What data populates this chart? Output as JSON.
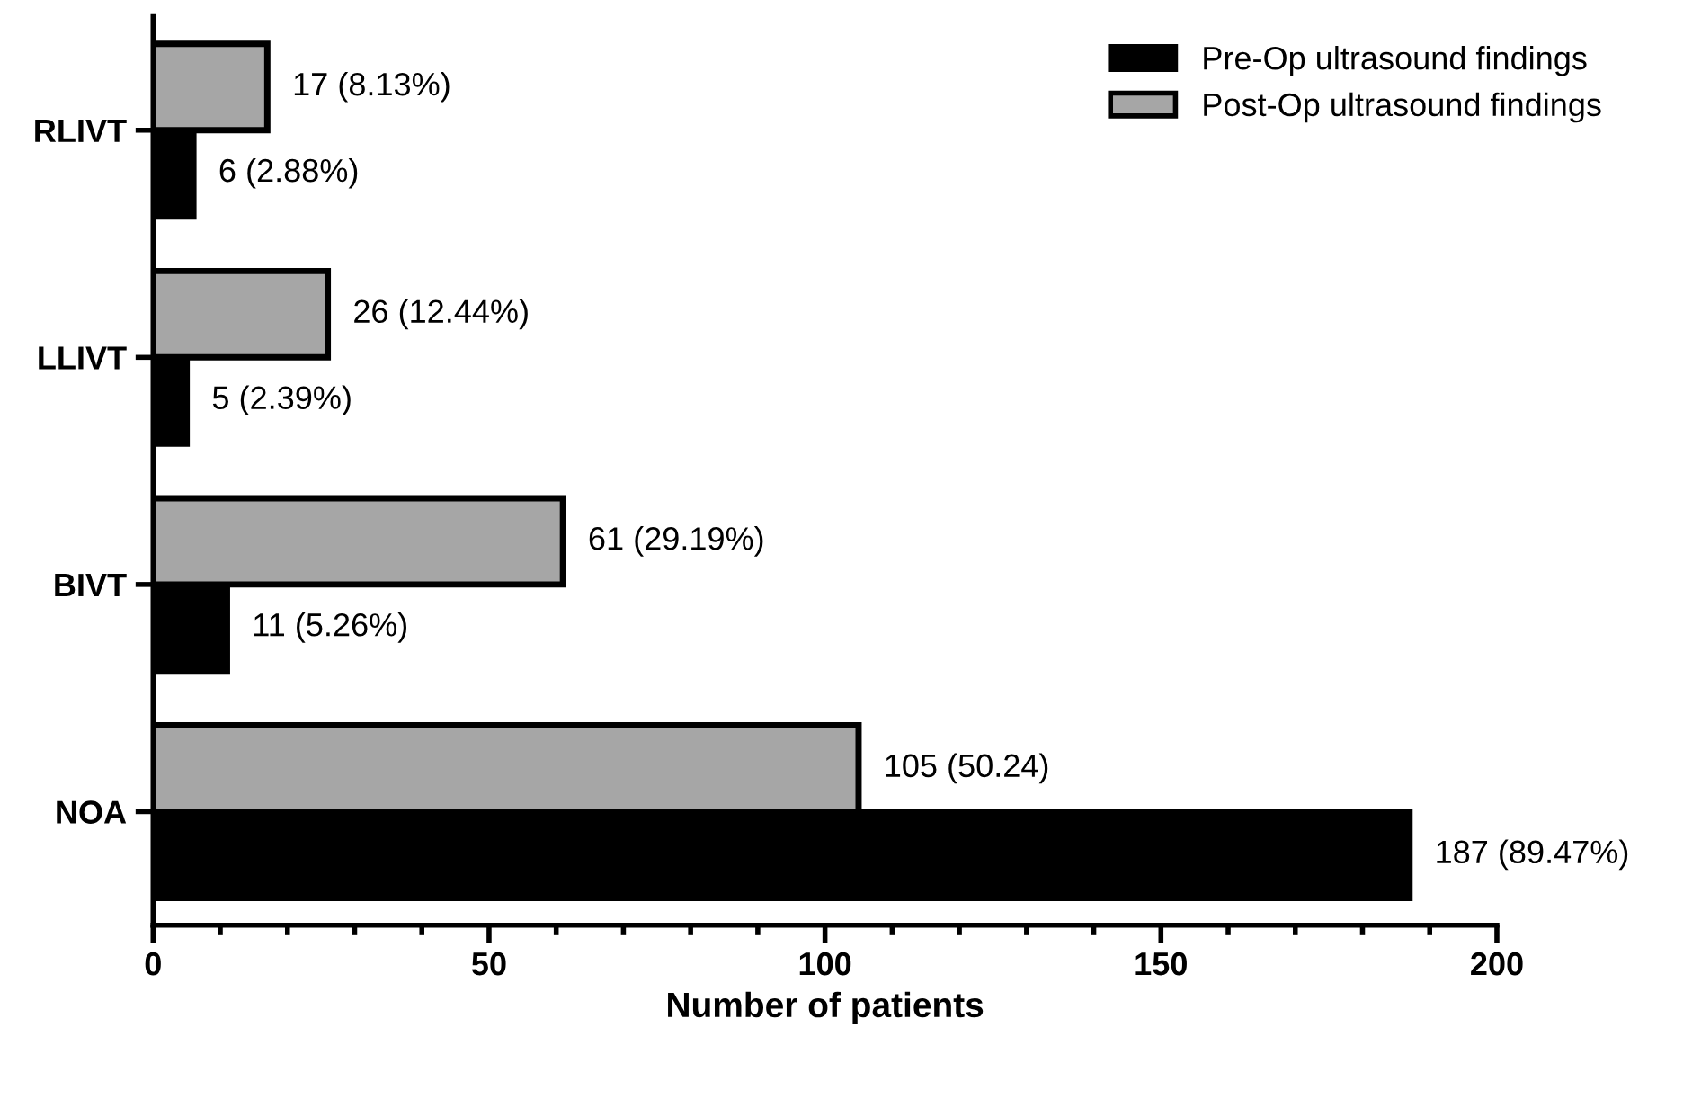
{
  "chart_data": {
    "type": "bar",
    "orientation": "horizontal",
    "xlabel": "Number of patients",
    "categories": [
      "RLIVT",
      "LLIVT",
      "BIVT",
      "NOA"
    ],
    "series": [
      {
        "name": "Pre-Op ultrasound findings",
        "color": "#000000",
        "values": [
          6,
          5,
          11,
          187
        ],
        "value_labels": [
          "6 (2.88%)",
          "5 (2.39%)",
          "11 (5.26%)",
          "187 (89.47%)"
        ]
      },
      {
        "name": "Post-Op ultrasound findings",
        "color": "#a6a6a6",
        "values": [
          17,
          26,
          61,
          105
        ],
        "value_labels": [
          "17 (8.13%)",
          "26 (12.44%)",
          "61 (29.19%)",
          "105 (50.24)"
        ]
      }
    ],
    "xlim": [
      0,
      200
    ],
    "xticks": [
      0,
      {
        "value": 10,
        "label": null
      },
      {
        "value": 20,
        "label": null
      },
      {
        "value": 30,
        "label": null
      },
      {
        "value": 40,
        "label": null
      },
      50,
      {
        "value": 60,
        "label": null
      },
      {
        "value": 70,
        "label": null
      },
      {
        "value": 80,
        "label": null
      },
      {
        "value": 90,
        "label": null
      },
      100,
      {
        "value": 110,
        "label": null
      },
      {
        "value": 120,
        "label": null
      },
      {
        "value": 130,
        "label": null
      },
      {
        "value": 140,
        "label": null
      },
      150,
      {
        "value": 160,
        "label": null
      },
      {
        "value": 170,
        "label": null
      },
      {
        "value": 180,
        "label": null
      },
      {
        "value": 190,
        "label": null
      },
      200
    ],
    "legend": "top right",
    "grid": false
  }
}
